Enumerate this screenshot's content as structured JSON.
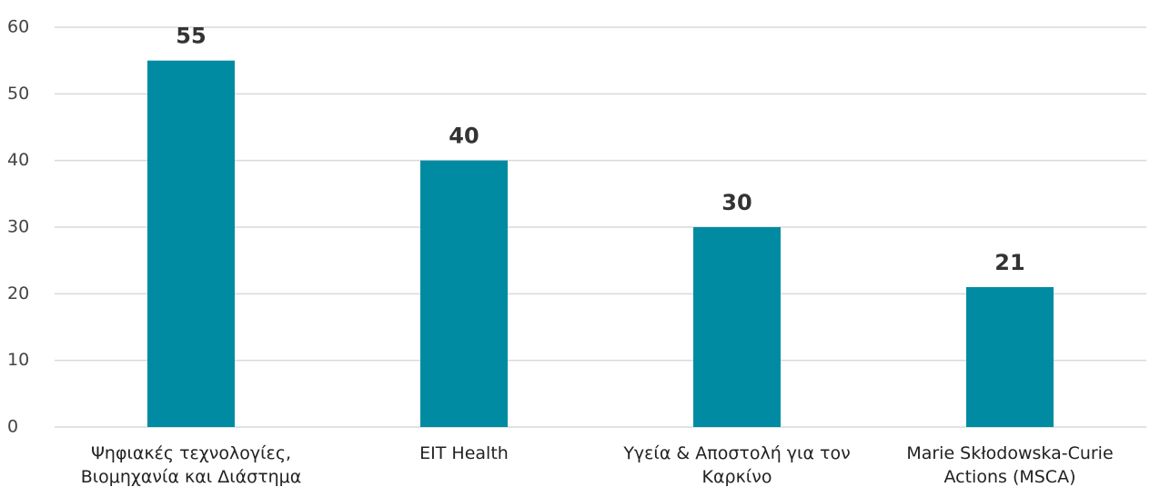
{
  "chart_data": {
    "type": "bar",
    "categories": [
      "Ψηφιακές τεχνολογίες, Βιομηχανία και Διάστημα",
      "EIT Health",
      "Υγεία & Αποστολή για τον Καρκίνο",
      "Marie Skłodowska-Curie Actions (MSCA)"
    ],
    "values": [
      55,
      40,
      30,
      21
    ],
    "color": "#008ba3",
    "ylim": [
      0,
      60
    ],
    "yticks": [
      0,
      10,
      20,
      30,
      40,
      50,
      60
    ],
    "grid": true,
    "data_labels": true
  }
}
